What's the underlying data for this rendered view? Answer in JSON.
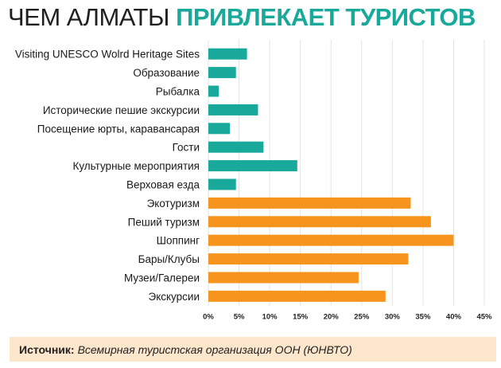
{
  "title": {
    "part1": "ЧЕМ АЛМАТЫ",
    "part2": "ПРИВЛЕКАЕТ ТУРИСТОВ"
  },
  "colors": {
    "accent": "#18a99a",
    "orange": "#f7941d",
    "footer_bg": "#fce6cc"
  },
  "chart_data": {
    "type": "bar",
    "orientation": "horizontal",
    "categories": [
      "Visiting UNESCO Wolrd Heritage Sites",
      "Образование",
      "Рыбалка",
      "Исторические пешие экскурсии",
      "Посещение юрты, каравансарая",
      "Гости",
      "Культурные мероприятия",
      "Верховая езда",
      "Экотуризм",
      "Пеший туризм",
      "Шоппинг",
      "Бары/Клубы",
      "Музеи/Галереи",
      "Экскурсии"
    ],
    "values": [
      6.3,
      4.5,
      1.7,
      8.1,
      3.5,
      9.0,
      14.5,
      4.5,
      33.0,
      36.3,
      40.0,
      32.6,
      24.5,
      28.9
    ],
    "colors": [
      "#18a99a",
      "#18a99a",
      "#18a99a",
      "#18a99a",
      "#18a99a",
      "#18a99a",
      "#18a99a",
      "#18a99a",
      "#f7941d",
      "#f7941d",
      "#f7941d",
      "#f7941d",
      "#f7941d",
      "#f7941d"
    ],
    "xlim": [
      0,
      45
    ],
    "xticks": [
      "0%",
      "5%",
      "10%",
      "15%",
      "20%",
      "25%",
      "30%",
      "35%",
      "40%",
      "45%"
    ],
    "grid": true,
    "legend": "none"
  },
  "footer": {
    "label": "Источник:",
    "text": "Всемирная туристская организация ООН (ЮНВТО)"
  }
}
